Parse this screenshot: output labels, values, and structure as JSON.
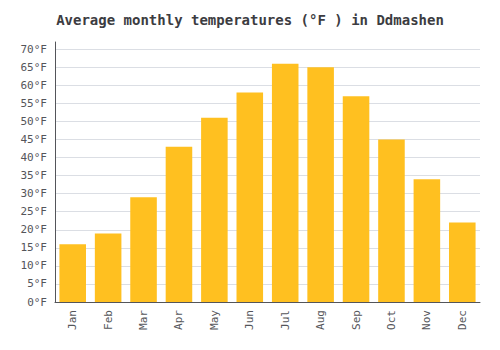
{
  "chart_data": {
    "type": "bar",
    "title": "Average monthly temperatures (°F ) in Ddmashen",
    "categories": [
      "Jan",
      "Feb",
      "Mar",
      "Apr",
      "May",
      "Jun",
      "Jul",
      "Aug",
      "Sep",
      "Oct",
      "Nov",
      "Dec"
    ],
    "values": [
      16,
      19,
      29,
      43,
      51,
      58,
      66,
      65,
      57,
      45,
      34,
      22
    ],
    "color": "#FFC020",
    "ylim": [
      0,
      72
    ],
    "yticks": [
      {
        "value": 0,
        "label": "0°F"
      },
      {
        "value": 5,
        "label": "5°F"
      },
      {
        "value": 10,
        "label": "10°F"
      },
      {
        "value": 15,
        "label": "15°F"
      },
      {
        "value": 20,
        "label": "20°F"
      },
      {
        "value": 25,
        "label": "25°F"
      },
      {
        "value": 30,
        "label": "30°F"
      },
      {
        "value": 35,
        "label": "35°F"
      },
      {
        "value": 40,
        "label": "40°F"
      },
      {
        "value": 45,
        "label": "45°F"
      },
      {
        "value": 50,
        "label": "50°F"
      },
      {
        "value": 55,
        "label": "55°F"
      },
      {
        "value": 60,
        "label": "60°F"
      },
      {
        "value": 65,
        "label": "65°F"
      },
      {
        "value": 70,
        "label": "70°F"
      }
    ],
    "grid": true
  }
}
